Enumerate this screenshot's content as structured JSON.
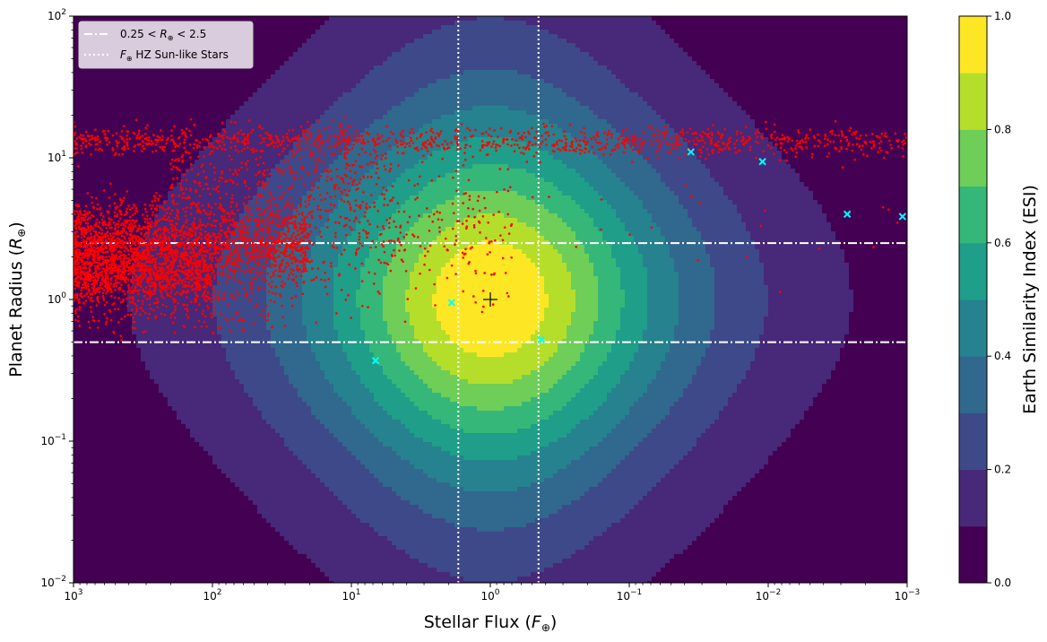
{
  "chart_data": {
    "type": "heatmap",
    "subtype": "filled-contour with scatter overlay",
    "xlabel": "Stellar Flux ($F_{\\oplus}$)",
    "xlabel_text": "Stellar Flux (",
    "xlabel_sym": "F",
    "ylabel_text": "Planet Radius (",
    "ylabel_sym": "R",
    "xscale": "log",
    "yscale": "log",
    "x_inverted": true,
    "xlim": [
      1000,
      0.001
    ],
    "ylim": [
      0.01,
      100
    ],
    "x_ticks": [
      {
        "exp": "3",
        "v": 1000
      },
      {
        "exp": "2",
        "v": 100
      },
      {
        "exp": "1",
        "v": 10
      },
      {
        "exp": "0",
        "v": 1
      },
      {
        "exp": "−1",
        "v": 0.1
      },
      {
        "exp": "−2",
        "v": 0.01
      },
      {
        "exp": "−3",
        "v": 0.001
      }
    ],
    "y_ticks": [
      {
        "exp": "−2",
        "v": 0.01
      },
      {
        "exp": "−1",
        "v": 0.1
      },
      {
        "exp": "0",
        "v": 1
      },
      {
        "exp": "1",
        "v": 10
      },
      {
        "exp": "2",
        "v": 100
      }
    ],
    "colorbar": {
      "label": "Earth Similarity Index (ESI)",
      "levels": [
        0.0,
        0.1,
        0.2,
        0.3,
        0.4,
        0.5,
        0.6,
        0.7,
        0.8,
        0.9,
        1.0
      ],
      "tick_labels": [
        "0.0",
        "0.2",
        "0.4",
        "0.6",
        "0.8",
        "1.0"
      ],
      "colors": [
        "#440154",
        "#482878",
        "#3e4989",
        "#31688e",
        "#26828e",
        "#1f9e89",
        "#35b779",
        "#6ece58",
        "#b5de2b",
        "#fde725"
      ]
    },
    "legend": {
      "position": "upper-left",
      "entries": [
        {
          "label_pre": "0.25 < ",
          "label_sym": "R",
          "label_post": " < 2.5",
          "style": "dash-dot",
          "color": "#ffffff"
        },
        {
          "label_pre": "",
          "label_sym": "F",
          "label_post": " HZ Sun-like Stars",
          "style": "dotted",
          "color": "#ffffff"
        }
      ]
    },
    "reference_lines": {
      "horizontal": [
        2.5,
        0.5
      ],
      "vertical": [
        1.7,
        0.45
      ]
    },
    "earth_marker": {
      "x": 1.0,
      "y": 1.0,
      "marker": "+",
      "color": "#000000"
    },
    "series": [
      {
        "marker": "dot",
        "color": "#ff0000",
        "clusters": [
          {
            "x_range": [
              1000,
              0.001
            ],
            "y_center": 13.0,
            "y_spread": 0.05,
            "count": 1100
          },
          {
            "x_range": [
              1000,
              20
            ],
            "y_center": 2.4,
            "y_spread": 0.16,
            "count": 2200
          },
          {
            "x_range": [
              1000,
              100
            ],
            "y_center": 1.5,
            "y_spread": 0.12,
            "count": 900
          },
          {
            "x_range": [
              200,
              5
            ],
            "y_center": 7.0,
            "y_spread": 0.16,
            "count": 350
          },
          {
            "x_range": [
              20,
              0.7
            ],
            "y_center": 3.0,
            "y_spread": 0.25,
            "count": 320
          },
          {
            "x_range": [
              1000,
              30
            ],
            "y_center": 0.9,
            "y_spread": 0.12,
            "count": 180
          },
          {
            "x_range": [
              0.7,
              0.001
            ],
            "y_center": 4.0,
            "y_spread": 0.3,
            "count": 25
          }
        ]
      },
      {
        "marker": "x",
        "color": "#00ffff",
        "points": [
          {
            "x": 6.7,
            "y": 0.37
          },
          {
            "x": 1.9,
            "y": 0.95
          },
          {
            "x": 0.43,
            "y": 0.52
          },
          {
            "x": 0.036,
            "y": 11.0
          },
          {
            "x": 0.011,
            "y": 9.4
          },
          {
            "x": 0.0027,
            "y": 4.0
          },
          {
            "x": 0.00108,
            "y": 3.85
          }
        ]
      }
    ]
  }
}
